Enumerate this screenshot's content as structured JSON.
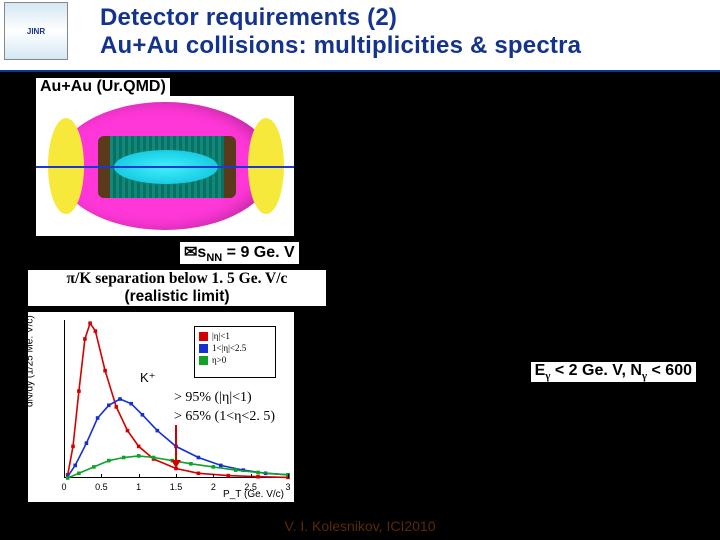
{
  "header": {
    "logo_text": "JINR",
    "title_line1": "Detector requirements (2)",
    "title_line2": "Au+Au collisions: multiplicities & spectra",
    "title_color": "#13338e",
    "bg_color": "#ffffff"
  },
  "page_bg": "#000000",
  "urqmd_label": "Au+Au (Ur.QMD)",
  "detector": {
    "outer_color": "#ff37d8",
    "endcap_color": "#f7e93b",
    "inner_color": "#0d8a7a",
    "core_color": "#40f1ff",
    "axis_color": "#1a3ad4",
    "bg": "#ffffff"
  },
  "snn_text": "s",
  "snn_sub": "NN",
  "snn_value": " = 9 Ge. V",
  "snn_symbol": "✉",
  "separation": {
    "line1": "π/K separation below 1. 5 Ge. V/c",
    "line2": "(realistic limit)"
  },
  "chart": {
    "type": "line",
    "ylabel": "dN/dy (1/25 Me. V/c)",
    "xlabel": "P_T (Ge. V/c)",
    "xlim": [
      0,
      3.0
    ],
    "xticks": [
      0,
      0.5,
      1.0,
      1.5,
      2.0,
      2.5,
      3.0
    ],
    "ylim": [
      0,
      1.0
    ],
    "marker_label": "K⁺",
    "background_color": "#ffffff",
    "legend": {
      "items": [
        {
          "label": "|η|<1",
          "color": "#d40000"
        },
        {
          "label": "1<|η|<2.5",
          "color": "#1330d4"
        },
        {
          "label": "η>0",
          "color": "#0fa226"
        }
      ]
    },
    "series": [
      {
        "name": "red",
        "color": "#d40000",
        "points": [
          [
            0.05,
            0.02
          ],
          [
            0.12,
            0.2
          ],
          [
            0.2,
            0.55
          ],
          [
            0.28,
            0.88
          ],
          [
            0.35,
            0.98
          ],
          [
            0.42,
            0.93
          ],
          [
            0.55,
            0.68
          ],
          [
            0.7,
            0.45
          ],
          [
            0.85,
            0.3
          ],
          [
            1.0,
            0.2
          ],
          [
            1.2,
            0.12
          ],
          [
            1.5,
            0.06
          ],
          [
            1.8,
            0.03
          ],
          [
            2.2,
            0.015
          ],
          [
            2.6,
            0.008
          ],
          [
            3.0,
            0.004
          ]
        ]
      },
      {
        "name": "blue",
        "color": "#1330d4",
        "points": [
          [
            0.05,
            0.01
          ],
          [
            0.15,
            0.08
          ],
          [
            0.3,
            0.22
          ],
          [
            0.45,
            0.38
          ],
          [
            0.6,
            0.46
          ],
          [
            0.75,
            0.5
          ],
          [
            0.9,
            0.47
          ],
          [
            1.05,
            0.4
          ],
          [
            1.25,
            0.3
          ],
          [
            1.5,
            0.2
          ],
          [
            1.8,
            0.13
          ],
          [
            2.1,
            0.08
          ],
          [
            2.4,
            0.05
          ],
          [
            2.7,
            0.03
          ],
          [
            3.0,
            0.02
          ]
        ]
      },
      {
        "name": "green",
        "color": "#0fa226",
        "points": [
          [
            0.05,
            0.0
          ],
          [
            0.2,
            0.03
          ],
          [
            0.4,
            0.07
          ],
          [
            0.6,
            0.11
          ],
          [
            0.8,
            0.13
          ],
          [
            1.0,
            0.14
          ],
          [
            1.2,
            0.13
          ],
          [
            1.45,
            0.11
          ],
          [
            1.7,
            0.09
          ],
          [
            2.0,
            0.07
          ],
          [
            2.3,
            0.05
          ],
          [
            2.6,
            0.035
          ],
          [
            3.0,
            0.02
          ]
        ]
      }
    ]
  },
  "efficiency": {
    "line1": "> 95% (|η|<1)",
    "line2": "> 65% (1<η<2. 5)"
  },
  "egamma": {
    "prefix": "E",
    "sub1": "γ",
    "mid": " < 2 Ge. V, N",
    "sub2": "γ",
    "suffix": " < 600"
  },
  "footer_text": "V. I. Kolesnikov, ICI2010"
}
